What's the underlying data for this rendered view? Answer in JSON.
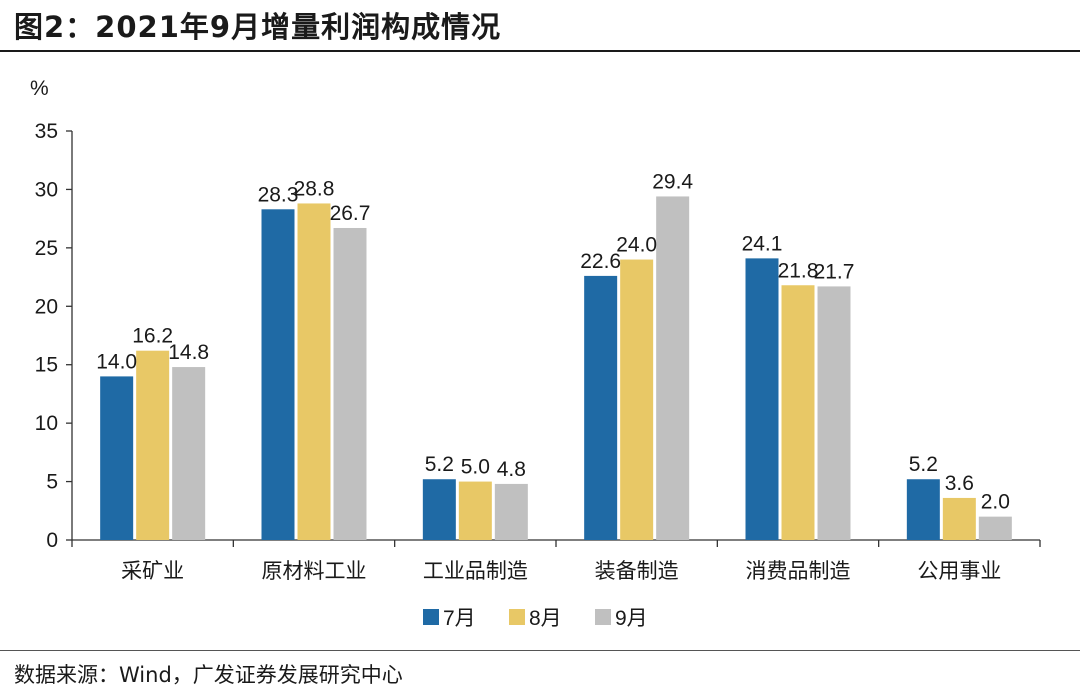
{
  "header": {
    "title": "图2：2021年9月增量利润构成情况"
  },
  "footer": {
    "source": "数据来源：Wind，广发证券发展研究中心"
  },
  "colors": {
    "jul": "#1f6aa5",
    "aug": "#e8c866",
    "sep": "#c0c0c0"
  },
  "chart_data": {
    "type": "bar",
    "title": "2021年9月增量利润构成情况",
    "ylabel": "%",
    "xlabel": "",
    "ylim": [
      0,
      35
    ],
    "yticks": [
      0,
      5,
      10,
      15,
      20,
      25,
      30,
      35
    ],
    "categories": [
      "采矿业",
      "原材料工业",
      "工业品制造",
      "装备制造",
      "消费品制造",
      "公用事业"
    ],
    "series": [
      {
        "name": "7月",
        "values": [
          14.0,
          28.3,
          5.2,
          22.6,
          24.1,
          5.2
        ],
        "labels": [
          "14.0",
          "28.3",
          "5.2",
          "22.6",
          "24.1",
          "5.2"
        ]
      },
      {
        "name": "8月",
        "values": [
          16.2,
          28.8,
          5.0,
          24.0,
          21.8,
          3.6
        ],
        "labels": [
          "16.2",
          "28.8",
          "5.0",
          "24.0",
          "21.8",
          "3.6"
        ]
      },
      {
        "name": "9月",
        "values": [
          14.8,
          26.7,
          4.8,
          29.4,
          21.7,
          2.0
        ],
        "labels": [
          "14.8",
          "26.7",
          "4.8",
          "29.4",
          "21.7",
          "2.0"
        ]
      }
    ],
    "legend_position": "bottom-center",
    "grid": false
  }
}
